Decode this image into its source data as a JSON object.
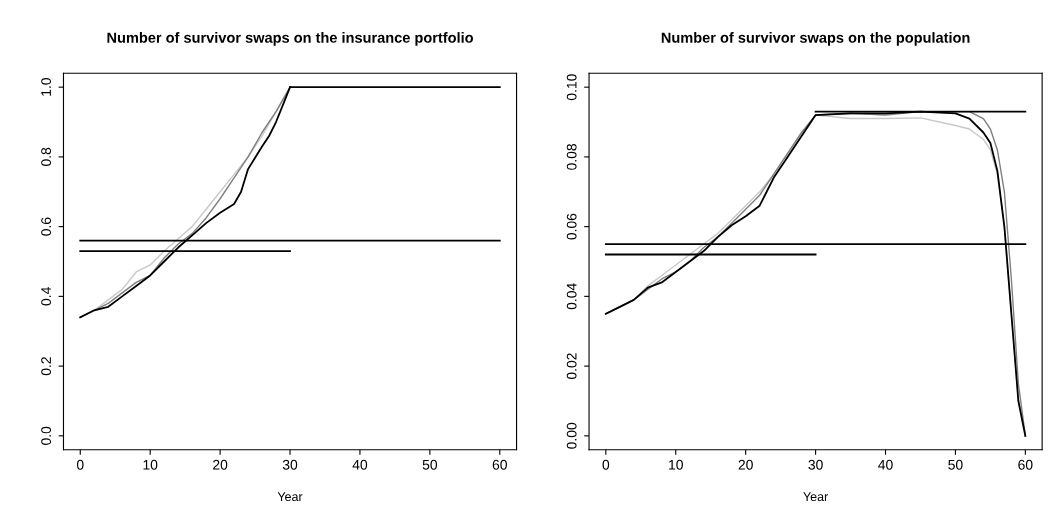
{
  "chart_data": [
    {
      "type": "line",
      "title": "Number of survivor swaps on the insurance portfolio",
      "xlabel": "Year",
      "xlim": [
        -2.4,
        62.4
      ],
      "ylim": [
        -0.04,
        1.04
      ],
      "xticks": [
        0,
        10,
        20,
        30,
        40,
        50,
        60
      ],
      "yticks": [
        {
          "value": 0,
          "label": "0.0"
        },
        {
          "value": 0.2,
          "label": "0.2"
        },
        {
          "value": 0.4,
          "label": "0.4"
        },
        {
          "value": 0.6,
          "label": "0.6"
        },
        {
          "value": 0.8,
          "label": "0.8"
        },
        {
          "value": 1,
          "label": "1.0"
        }
      ],
      "grid": false,
      "series": [
        {
          "color": "#c8c8c8",
          "x": [
            0,
            2,
            4,
            6,
            8,
            10,
            12,
            14,
            16,
            18,
            20,
            22,
            24,
            26,
            28,
            30
          ],
          "values": [
            0.34,
            0.36,
            0.39,
            0.42,
            0.47,
            0.49,
            0.53,
            0.565,
            0.6,
            0.65,
            0.7,
            0.75,
            0.8,
            0.86,
            0.93,
            1.0
          ]
        },
        {
          "color": "#7f7f7f",
          "x": [
            0,
            2,
            4,
            6,
            8,
            10,
            12,
            14,
            16,
            18,
            20,
            22,
            24,
            26,
            28,
            30
          ],
          "values": [
            0.34,
            0.36,
            0.38,
            0.41,
            0.44,
            0.46,
            0.51,
            0.55,
            0.58,
            0.625,
            0.68,
            0.74,
            0.8,
            0.87,
            0.93,
            1.0
          ]
        },
        {
          "color": "#000000",
          "x": [
            0,
            2,
            4,
            6,
            8,
            10,
            12,
            14,
            16,
            18,
            20,
            22,
            23,
            24,
            26,
            27,
            28,
            29,
            30
          ],
          "values": [
            0.34,
            0.36,
            0.37,
            0.4,
            0.43,
            0.46,
            0.5,
            0.54,
            0.575,
            0.61,
            0.64,
            0.665,
            0.7,
            0.765,
            0.83,
            0.86,
            0.9,
            0.95,
            1.0
          ]
        },
        {
          "color": "#000000",
          "x": [
            30,
            60
          ],
          "values": [
            1.0,
            1.0
          ]
        },
        {
          "color": "#000000",
          "x": [
            0,
            60
          ],
          "values": [
            0.56,
            0.56
          ]
        },
        {
          "color": "#000000",
          "x": [
            0,
            30
          ],
          "values": [
            0.53,
            0.53
          ]
        }
      ]
    },
    {
      "type": "line",
      "title": "Number of survivor swaps on the population",
      "xlabel": "Year",
      "xlim": [
        -2.4,
        62.4
      ],
      "ylim": [
        -0.004,
        0.104
      ],
      "xticks": [
        0,
        10,
        20,
        30,
        40,
        50,
        60
      ],
      "yticks": [
        {
          "value": 0,
          "label": "0.00"
        },
        {
          "value": 0.02,
          "label": "0.02"
        },
        {
          "value": 0.04,
          "label": "0.04"
        },
        {
          "value": 0.06,
          "label": "0.06"
        },
        {
          "value": 0.08,
          "label": "0.08"
        },
        {
          "value": 0.1,
          "label": "0.10"
        }
      ],
      "grid": false,
      "series": [
        {
          "color": "#c8c8c8",
          "x": [
            0,
            2,
            4,
            6,
            8,
            10,
            12,
            14,
            16,
            18,
            20,
            22,
            24,
            26,
            28,
            30,
            35,
            40,
            45,
            50,
            52,
            54,
            55,
            56,
            57,
            58,
            59,
            60
          ],
          "values": [
            0.035,
            0.037,
            0.039,
            0.043,
            0.046,
            0.049,
            0.052,
            0.055,
            0.058,
            0.062,
            0.066,
            0.07,
            0.075,
            0.081,
            0.087,
            0.092,
            0.091,
            0.091,
            0.0912,
            0.089,
            0.088,
            0.085,
            0.082,
            0.075,
            0.06,
            0.035,
            0.01,
            0.0
          ]
        },
        {
          "color": "#7f7f7f",
          "x": [
            0,
            2,
            4,
            6,
            8,
            10,
            12,
            14,
            16,
            18,
            20,
            22,
            24,
            26,
            28,
            30,
            35,
            40,
            45,
            50,
            52,
            54,
            55,
            56,
            57,
            58,
            59,
            60
          ],
          "values": [
            0.035,
            0.037,
            0.039,
            0.042,
            0.045,
            0.047,
            0.05,
            0.054,
            0.057,
            0.061,
            0.065,
            0.069,
            0.075,
            0.081,
            0.087,
            0.092,
            0.0925,
            0.092,
            0.093,
            0.093,
            0.093,
            0.091,
            0.088,
            0.082,
            0.07,
            0.045,
            0.015,
            0.0
          ]
        },
        {
          "color": "#000000",
          "x": [
            0,
            2,
            4,
            6,
            8,
            10,
            12,
            14,
            16,
            18,
            20,
            22,
            23,
            24,
            26,
            28,
            30,
            35,
            40,
            45,
            50,
            52,
            54,
            55,
            56,
            57,
            58,
            59,
            60
          ],
          "values": [
            0.035,
            0.037,
            0.039,
            0.0425,
            0.044,
            0.047,
            0.05,
            0.053,
            0.057,
            0.0604,
            0.063,
            0.066,
            0.07,
            0.074,
            0.08,
            0.086,
            0.092,
            0.0925,
            0.0925,
            0.093,
            0.0925,
            0.091,
            0.087,
            0.084,
            0.076,
            0.06,
            0.035,
            0.01,
            0.0
          ]
        },
        {
          "color": "#000000",
          "x": [
            30,
            60
          ],
          "values": [
            0.093,
            0.093
          ]
        },
        {
          "color": "#000000",
          "x": [
            0,
            60
          ],
          "values": [
            0.055,
            0.055
          ]
        },
        {
          "color": "#000000",
          "x": [
            0,
            30
          ],
          "values": [
            0.052,
            0.052
          ]
        }
      ]
    }
  ]
}
